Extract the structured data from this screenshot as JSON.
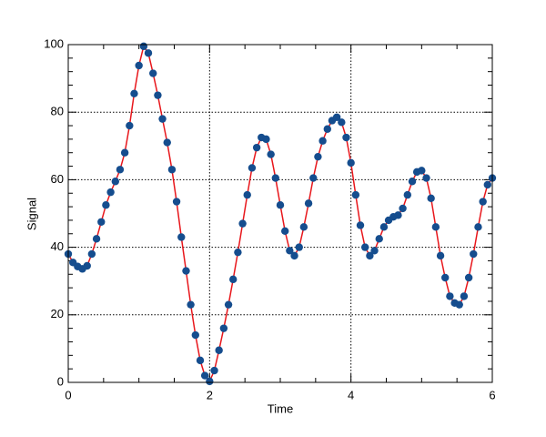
{
  "chart_data": {
    "type": "line",
    "x_label": "Time",
    "y_label": "Signal",
    "x": [
      0,
      0.067,
      0.133,
      0.2,
      0.267,
      0.333,
      0.4,
      0.467,
      0.533,
      0.6,
      0.667,
      0.733,
      0.8,
      0.867,
      0.933,
      1,
      1.067,
      1.133,
      1.2,
      1.267,
      1.333,
      1.4,
      1.467,
      1.533,
      1.6,
      1.667,
      1.733,
      1.8,
      1.867,
      1.933,
      2,
      2.067,
      2.133,
      2.2,
      2.267,
      2.333,
      2.4,
      2.467,
      2.533,
      2.6,
      2.667,
      2.733,
      2.8,
      2.867,
      2.933,
      3,
      3.067,
      3.133,
      3.2,
      3.267,
      3.333,
      3.4,
      3.467,
      3.533,
      3.6,
      3.667,
      3.733,
      3.8,
      3.867,
      3.933,
      4,
      4.067,
      4.133,
      4.2,
      4.267,
      4.333,
      4.4,
      4.467,
      4.533,
      4.6,
      4.667,
      4.733,
      4.8,
      4.867,
      4.933,
      5,
      5.067,
      5.133,
      5.2,
      5.267,
      5.333,
      5.4,
      5.467,
      5.533,
      5.6,
      5.667,
      5.733,
      5.8,
      5.867,
      5.933,
      6
    ],
    "values": [
      38,
      35.5,
      34.3,
      33.6,
      34.5,
      38,
      42.5,
      47.5,
      52.5,
      56.3,
      59.5,
      63,
      68,
      76,
      85.5,
      93.8,
      99.5,
      97.5,
      91.5,
      85,
      78,
      71,
      63,
      53.5,
      43,
      33,
      23,
      14,
      6.5,
      2,
      0.3,
      3.5,
      9.5,
      16,
      23,
      30.5,
      38.5,
      47,
      55.5,
      63.5,
      69.5,
      72.5,
      72,
      67.5,
      60.5,
      52.5,
      44.8,
      39,
      37.5,
      40,
      46,
      53,
      60.5,
      66.8,
      71.5,
      75,
      77.5,
      78.5,
      77,
      72.5,
      65,
      55.5,
      46.5,
      40,
      37.5,
      39,
      42.5,
      46,
      48,
      49,
      49.5,
      51.5,
      55.5,
      59.5,
      62.3,
      62.7,
      60.5,
      54.5,
      46,
      37.5,
      31,
      25.5,
      23.5,
      23,
      25.5,
      31,
      38,
      46,
      53.5,
      58.5,
      60.5
    ],
    "line_color": "#e8161b",
    "marker_color": "#154d8e",
    "xlim": [
      0,
      6
    ],
    "xticks": [
      0,
      2,
      4,
      6
    ],
    "ylim": [
      0,
      100
    ],
    "yticks": [
      0,
      20,
      40,
      60,
      80,
      100
    ],
    "grid": true
  }
}
